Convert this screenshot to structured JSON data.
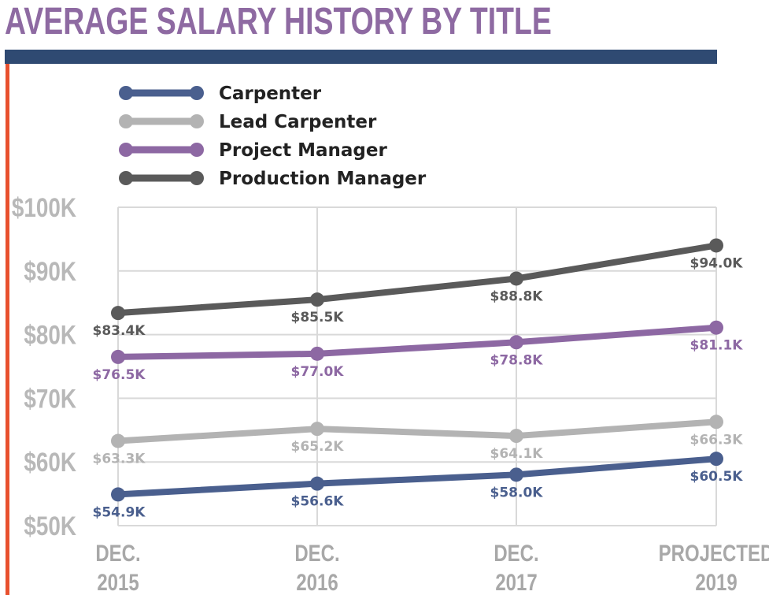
{
  "header": {
    "title": "AVERAGE SALARY HISTORY BY TITLE"
  },
  "chart_data": {
    "type": "line",
    "title": "AVERAGE SALARY HISTORY BY TITLE",
    "xlabel": "",
    "ylabel": "",
    "ylim": [
      50,
      100
    ],
    "y_ticks": [
      "$50K",
      "$60K",
      "$70K",
      "$80K",
      "$90K",
      "$100K"
    ],
    "y_tick_values": [
      50,
      60,
      70,
      80,
      90,
      100
    ],
    "categories": [
      [
        "DEC.",
        "2015"
      ],
      [
        "DEC.",
        "2016"
      ],
      [
        "DEC.",
        "2017"
      ],
      [
        "PROJECTED",
        "2019"
      ]
    ],
    "grid": true,
    "legend_position": "top-left",
    "series": [
      {
        "name": "Carpenter",
        "color": "#4a5f8e",
        "values": [
          54.9,
          56.6,
          58.0,
          60.5
        ],
        "labels": [
          "$54.9K",
          "$56.6K",
          "$58.0K",
          "$60.5K"
        ],
        "label_side": "below"
      },
      {
        "name": "Lead Carpenter",
        "color": "#b3b3b3",
        "values": [
          63.3,
          65.2,
          64.1,
          66.3
        ],
        "labels": [
          "$63.3K",
          "$65.2K",
          "$64.1K",
          "$66.3K"
        ],
        "label_side": "below"
      },
      {
        "name": "Project Manager",
        "color": "#8d68a3",
        "values": [
          76.5,
          77.0,
          78.8,
          81.1
        ],
        "labels": [
          "$76.5K",
          "$77.0K",
          "$78.8K",
          "$81.1K"
        ],
        "label_side": "below"
      },
      {
        "name": "Production Manager",
        "color": "#5a5a5a",
        "values": [
          83.4,
          85.5,
          88.8,
          94.0
        ],
        "labels": [
          "$83.4K",
          "$85.5K",
          "$88.8K",
          "$94.0K"
        ],
        "label_side": "below"
      }
    ]
  }
}
